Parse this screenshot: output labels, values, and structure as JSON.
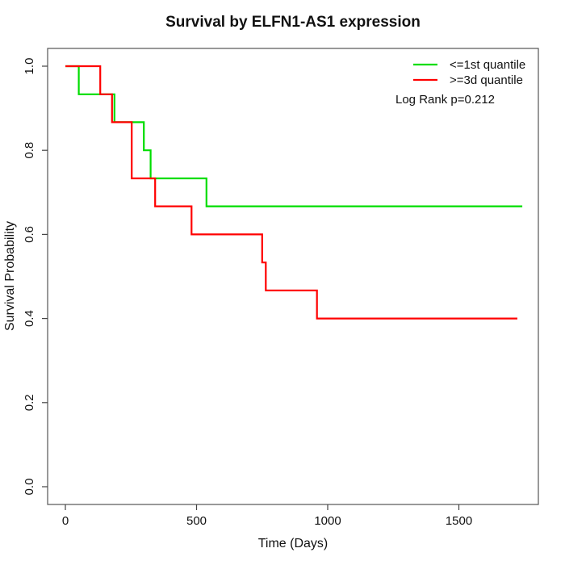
{
  "chart_data": {
    "type": "line",
    "subtype": "kaplan-meier-step",
    "title": "Survival by ELFN1-AS1 expression",
    "xlabel": "Time (Days)",
    "ylabel": "Survival Probability",
    "xlim": [
      0,
      1800
    ],
    "ylim": [
      0.0,
      1.0
    ],
    "x_ticks": [
      "0",
      "500",
      "1000",
      "1500"
    ],
    "y_ticks": [
      "0.0",
      "0.2",
      "0.4",
      "0.6",
      "0.8",
      "1.0"
    ],
    "grid": false,
    "legend_position": "top-right",
    "annotation": "Log Rank p=0.212",
    "series": [
      {
        "name": "<=1st quantile",
        "color": "#00DD00",
        "start": [
          0,
          1.0
        ],
        "events": [
          [
            51,
            0.9333
          ],
          [
            187,
            0.8667
          ],
          [
            299,
            0.8
          ],
          [
            325,
            0.7333
          ],
          [
            538,
            0.6667
          ]
        ],
        "end_time": 1742,
        "final_probability": 0.6667
      },
      {
        "name": ">=3d quantile",
        "color": "#FF0000",
        "start": [
          0,
          1.0
        ],
        "events": [
          [
            133,
            0.9333
          ],
          [
            178,
            0.8667
          ],
          [
            253,
            0.7333
          ],
          [
            342,
            0.6667
          ],
          [
            481,
            0.6
          ],
          [
            750,
            0.5333
          ],
          [
            764,
            0.4667
          ],
          [
            959,
            0.4
          ]
        ],
        "end_time": 1723,
        "final_probability": 0.4
      }
    ]
  }
}
